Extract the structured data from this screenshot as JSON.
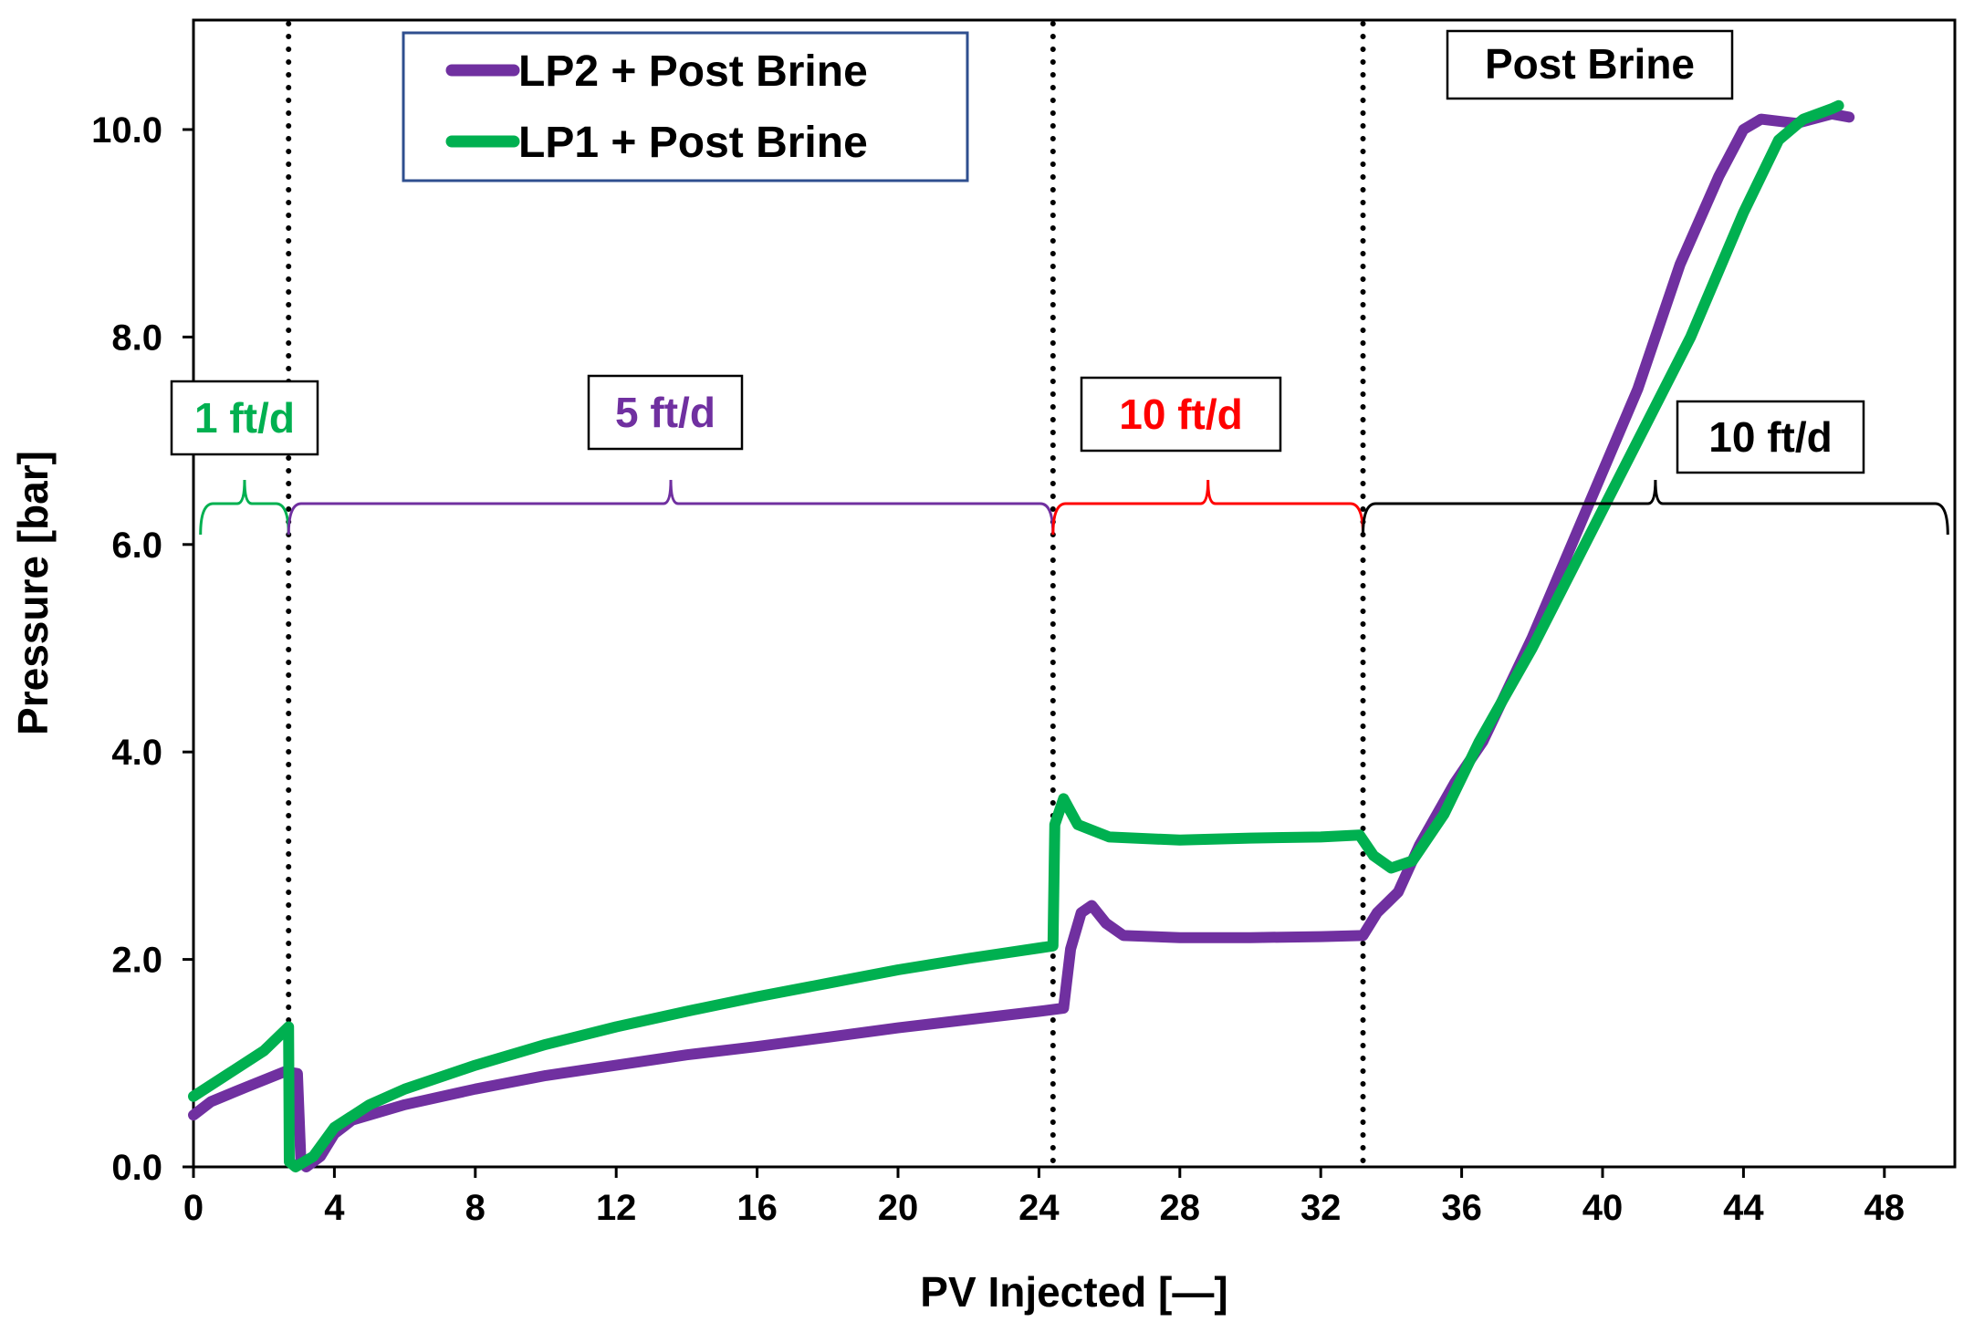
{
  "chart_data": {
    "type": "line",
    "title": "",
    "xlabel": "PV Injected [—]",
    "ylabel": "Pressure [bar]",
    "xlim": [
      0,
      50
    ],
    "ylim": [
      0,
      11
    ],
    "xticks": [
      0,
      4,
      8,
      12,
      16,
      20,
      24,
      28,
      32,
      36,
      40,
      44,
      48
    ],
    "yticks": [
      0,
      2,
      4,
      6,
      8,
      10
    ],
    "xtick_labels": [
      "0",
      "4",
      "8",
      "12",
      "16",
      "20",
      "24",
      "28",
      "32",
      "36",
      "40",
      "44",
      "48"
    ],
    "ytick_labels": [
      "0.0",
      "2.0",
      "4.0",
      "6.0",
      "8.0",
      "10.0"
    ],
    "grid": false,
    "legend_position": "top-left",
    "phase_boundaries": [
      2.7,
      24.4,
      33.2
    ],
    "series": [
      {
        "name": "LP2 + Post Brine",
        "color": "#7030a0",
        "points": [
          [
            0,
            0.5
          ],
          [
            0.5,
            0.63
          ],
          [
            1.5,
            0.77
          ],
          [
            2.6,
            0.92
          ],
          [
            2.95,
            0.9
          ],
          [
            3.05,
            0.05
          ],
          [
            3.2,
            0.0
          ],
          [
            3.6,
            0.1
          ],
          [
            4,
            0.32
          ],
          [
            4.5,
            0.45
          ],
          [
            6,
            0.6
          ],
          [
            8,
            0.75
          ],
          [
            10,
            0.88
          ],
          [
            12,
            0.98
          ],
          [
            14,
            1.08
          ],
          [
            16,
            1.16
          ],
          [
            18,
            1.25
          ],
          [
            20,
            1.34
          ],
          [
            22,
            1.42
          ],
          [
            24,
            1.5
          ],
          [
            24.7,
            1.53
          ],
          [
            24.9,
            2.1
          ],
          [
            25.2,
            2.45
          ],
          [
            25.5,
            2.52
          ],
          [
            25.9,
            2.35
          ],
          [
            26.4,
            2.23
          ],
          [
            28,
            2.21
          ],
          [
            30,
            2.21
          ],
          [
            32,
            2.22
          ],
          [
            33.2,
            2.23
          ],
          [
            33.6,
            2.45
          ],
          [
            34.2,
            2.65
          ],
          [
            34.8,
            3.1
          ],
          [
            35.8,
            3.7
          ],
          [
            36.6,
            4.1
          ],
          [
            38,
            5.1
          ],
          [
            39.5,
            6.3
          ],
          [
            41,
            7.5
          ],
          [
            42.2,
            8.7
          ],
          [
            43.3,
            9.55
          ],
          [
            44,
            10.0
          ],
          [
            44.5,
            10.1
          ],
          [
            45.5,
            10.06
          ],
          [
            46.5,
            10.15
          ],
          [
            47,
            10.12
          ]
        ]
      },
      {
        "name": "LP1 + Post Brine",
        "color": "#00b050",
        "points": [
          [
            0,
            0.68
          ],
          [
            1,
            0.9
          ],
          [
            2,
            1.12
          ],
          [
            2.7,
            1.35
          ],
          [
            2.72,
            0.05
          ],
          [
            2.9,
            0.0
          ],
          [
            3.4,
            0.1
          ],
          [
            4,
            0.38
          ],
          [
            5,
            0.6
          ],
          [
            6,
            0.75
          ],
          [
            8,
            0.98
          ],
          [
            10,
            1.18
          ],
          [
            12,
            1.35
          ],
          [
            14,
            1.5
          ],
          [
            16,
            1.64
          ],
          [
            18,
            1.77
          ],
          [
            20,
            1.9
          ],
          [
            22,
            2.01
          ],
          [
            24.4,
            2.13
          ],
          [
            24.45,
            3.3
          ],
          [
            24.7,
            3.55
          ],
          [
            25.1,
            3.3
          ],
          [
            26,
            3.18
          ],
          [
            28,
            3.15
          ],
          [
            30,
            3.17
          ],
          [
            32,
            3.18
          ],
          [
            33.1,
            3.2
          ],
          [
            33.5,
            3.0
          ],
          [
            34,
            2.88
          ],
          [
            34.6,
            2.95
          ],
          [
            35.5,
            3.4
          ],
          [
            36.5,
            4.1
          ],
          [
            38,
            5.0
          ],
          [
            39.5,
            6.0
          ],
          [
            41,
            7.0
          ],
          [
            42.5,
            8.0
          ],
          [
            44,
            9.2
          ],
          [
            45,
            9.9
          ],
          [
            45.7,
            10.1
          ],
          [
            46.5,
            10.2
          ],
          [
            46.7,
            10.23
          ]
        ]
      }
    ],
    "annotations": [
      {
        "text": "1 ft/d",
        "color": "#00b050",
        "x_start": 0.2,
        "x_end": 2.7,
        "y": 6.35
      },
      {
        "text": "5 ft/d",
        "color": "#7030a0",
        "x_start": 2.7,
        "x_end": 24.4,
        "y": 6.35
      },
      {
        "text": "10 ft/d",
        "color": "#ff0000",
        "x_start": 24.4,
        "x_end": 33.2,
        "y": 6.35
      },
      {
        "text": "10 ft/d",
        "color": "#000000",
        "x_start": 33.2,
        "x_end": 49.8,
        "y": 6.35
      },
      {
        "text": "Post Brine",
        "color": "#000000"
      }
    ]
  }
}
